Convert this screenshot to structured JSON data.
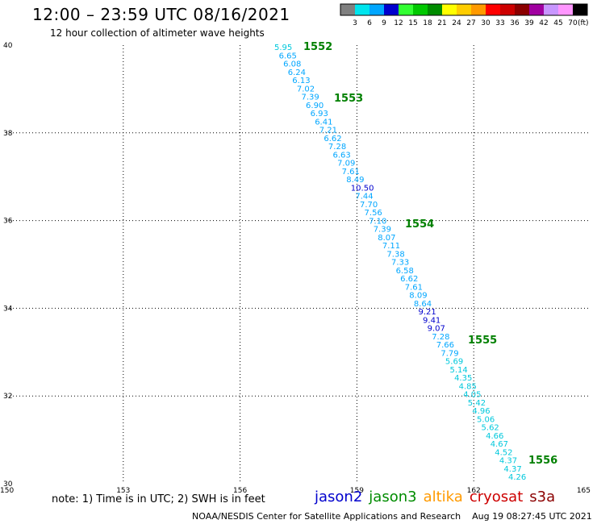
{
  "header": {
    "title": "12:00 – 23:59 UTC 08/16/2021",
    "subtitle": "12 hour collection of altimeter wave heights"
  },
  "colorbar": {
    "unit_label": "(ft)",
    "bins": [
      {
        "label": "3",
        "color": "#808080"
      },
      {
        "label": "6",
        "color": "#00e5ee"
      },
      {
        "label": "9",
        "color": "#00a6ff"
      },
      {
        "label": "12",
        "color": "#0000cd"
      },
      {
        "label": "15",
        "color": "#32ff32"
      },
      {
        "label": "18",
        "color": "#00c800"
      },
      {
        "label": "21",
        "color": "#008c00"
      },
      {
        "label": "24",
        "color": "#ffff00"
      },
      {
        "label": "27",
        "color": "#ffcd00"
      },
      {
        "label": "30",
        "color": "#ff9a00"
      },
      {
        "label": "33",
        "color": "#ff0000"
      },
      {
        "label": "36",
        "color": "#cd0000"
      },
      {
        "label": "39",
        "color": "#8b0000"
      },
      {
        "label": "42",
        "color": "#a000a0"
      },
      {
        "label": "45",
        "color": "#c896ff"
      },
      {
        "label": "70",
        "color": "#ff96ff"
      },
      {
        "label": "",
        "color": "#000000"
      }
    ]
  },
  "map": {
    "lon_ticks": [
      "150",
      "153",
      "156",
      "159",
      "162",
      "165"
    ],
    "lat_ticks": [
      "40",
      "38",
      "36",
      "34",
      "32",
      "30"
    ],
    "track": {
      "satellite": "jason3",
      "values": [
        "5.95",
        "6.65",
        "6.08",
        "6.24",
        "6.13",
        "7.02",
        "7.39",
        "6.90",
        "6.93",
        "6.41",
        "7.21",
        "6.62",
        "7.28",
        "6.63",
        "7.09",
        "7.61",
        "8.49",
        "10.50",
        "7.44",
        "7.70",
        "7.56",
        "7.10",
        "7.39",
        "8.07",
        "7.11",
        "7.38",
        "7.33",
        "6.58",
        "6.62",
        "7.61",
        "8.09",
        "8.64",
        "9.21",
        "9.41",
        "9.07",
        "7.28",
        "7.66",
        "7.79",
        "5.69",
        "5.14",
        "4.35",
        "4.85",
        "4.05",
        "5.42",
        "4.96",
        "5.06",
        "5.62",
        "4.66",
        "4.67",
        "4.52",
        "4.37",
        "4.37",
        "4.26"
      ],
      "time_labels": [
        "1552",
        "1553",
        "1554",
        "1555",
        "1556"
      ],
      "time_label_color": "#008000"
    }
  },
  "footer": {
    "note": "note: 1) Time is in UTC; 2) SWH is in feet",
    "satellites": [
      {
        "name": "jason2",
        "color": "#0000cd"
      },
      {
        "name": "jason3",
        "color": "#008c00"
      },
      {
        "name": "altika",
        "color": "#ff9a00"
      },
      {
        "name": "cryosat",
        "color": "#cd0000"
      },
      {
        "name": "s3a",
        "color": "#8b0000"
      }
    ],
    "credit": "NOAA/NESDIS Center for Satellite Applications and Research",
    "timestamp": "Aug 19 08:27:45 UTC 2021"
  }
}
